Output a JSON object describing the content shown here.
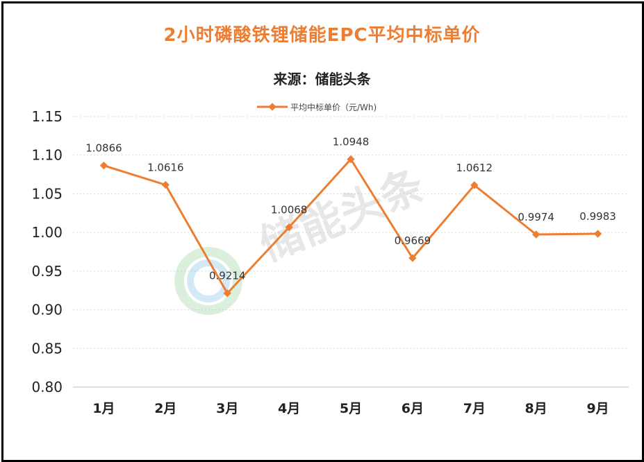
{
  "chart_data": {
    "type": "line",
    "title": "2小时磷酸铁锂储能EPC平均中标单价",
    "subtitle": "来源：储能头条",
    "categories": [
      "1月",
      "2月",
      "3月",
      "4月",
      "5月",
      "6月",
      "7月",
      "8月",
      "9月"
    ],
    "series": [
      {
        "name": "平均中标单价（元/Wh)",
        "values": [
          1.0866,
          1.0616,
          0.9214,
          1.0068,
          1.0948,
          0.9669,
          1.0612,
          0.9974,
          0.9983
        ],
        "labels": [
          "1.0866",
          "1.0616",
          "0.9214",
          "1.0068",
          "1.0948",
          "0.9669",
          "1.0612",
          "0.9974",
          "0.9983"
        ],
        "color": "#ED7D31"
      }
    ],
    "yticks": [
      "0.80",
      "0.85",
      "0.90",
      "0.95",
      "1.00",
      "1.05",
      "1.10",
      "1.15"
    ],
    "ylim": [
      0.8,
      1.15
    ],
    "grid": true,
    "legend": "top-center",
    "watermark": "储能头条"
  }
}
